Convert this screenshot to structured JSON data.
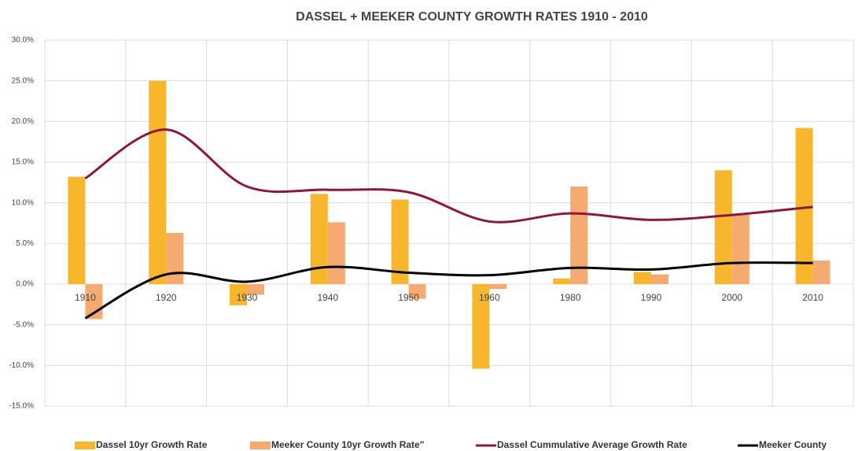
{
  "chart_data": {
    "type": "bar-line",
    "title": "DASSEL + MEEKER COUNTY GROWTH RATES 1910 - 2010",
    "categories": [
      "1910",
      "1920",
      "1930",
      "1940",
      "1950",
      "1960",
      "1980",
      "1990",
      "2000",
      "2010"
    ],
    "series": [
      {
        "name": "Dassel 10yr Growth Rate",
        "kind": "bar",
        "color": "#f8b62d",
        "values": [
          13.2,
          25.0,
          -2.6,
          11.1,
          10.4,
          -10.4,
          0.7,
          1.5,
          14.0,
          19.2
        ]
      },
      {
        "name": "Meeker County 10yr Growth Rate\"",
        "kind": "bar",
        "color": "#f5aa72",
        "values": [
          -4.3,
          6.3,
          -1.3,
          7.6,
          -1.8,
          -0.6,
          12.0,
          1.2,
          8.6,
          2.9
        ]
      },
      {
        "name": "Dassel Cummulative Average Growth Rate",
        "kind": "line",
        "color": "#8c1840",
        "values": [
          13.0,
          19.0,
          12.0,
          11.6,
          11.3,
          7.7,
          8.7,
          7.9,
          8.5,
          9.5
        ]
      },
      {
        "name": "Meeker County",
        "kind": "line",
        "color": "#000000",
        "values": [
          -4.2,
          1.2,
          0.3,
          2.1,
          1.4,
          1.1,
          2.0,
          1.8,
          2.6,
          2.6
        ]
      }
    ],
    "ylim": [
      -15,
      30
    ],
    "yticks": [
      {
        "value": -15,
        "label": "-15.0%"
      },
      {
        "value": -10,
        "label": "-10.0%"
      },
      {
        "value": -5,
        "label": "-5.0%"
      },
      {
        "value": 0,
        "label": "0.0%"
      },
      {
        "value": 5,
        "label": "5.0%"
      },
      {
        "value": 10,
        "label": "10.0%"
      },
      {
        "value": 15,
        "label": "15.0%"
      },
      {
        "value": 20,
        "label": "20.0%"
      },
      {
        "value": 25,
        "label": "25.0%"
      },
      {
        "value": 30,
        "label": "30.0%"
      }
    ],
    "grid": true,
    "legend": "bottom"
  }
}
